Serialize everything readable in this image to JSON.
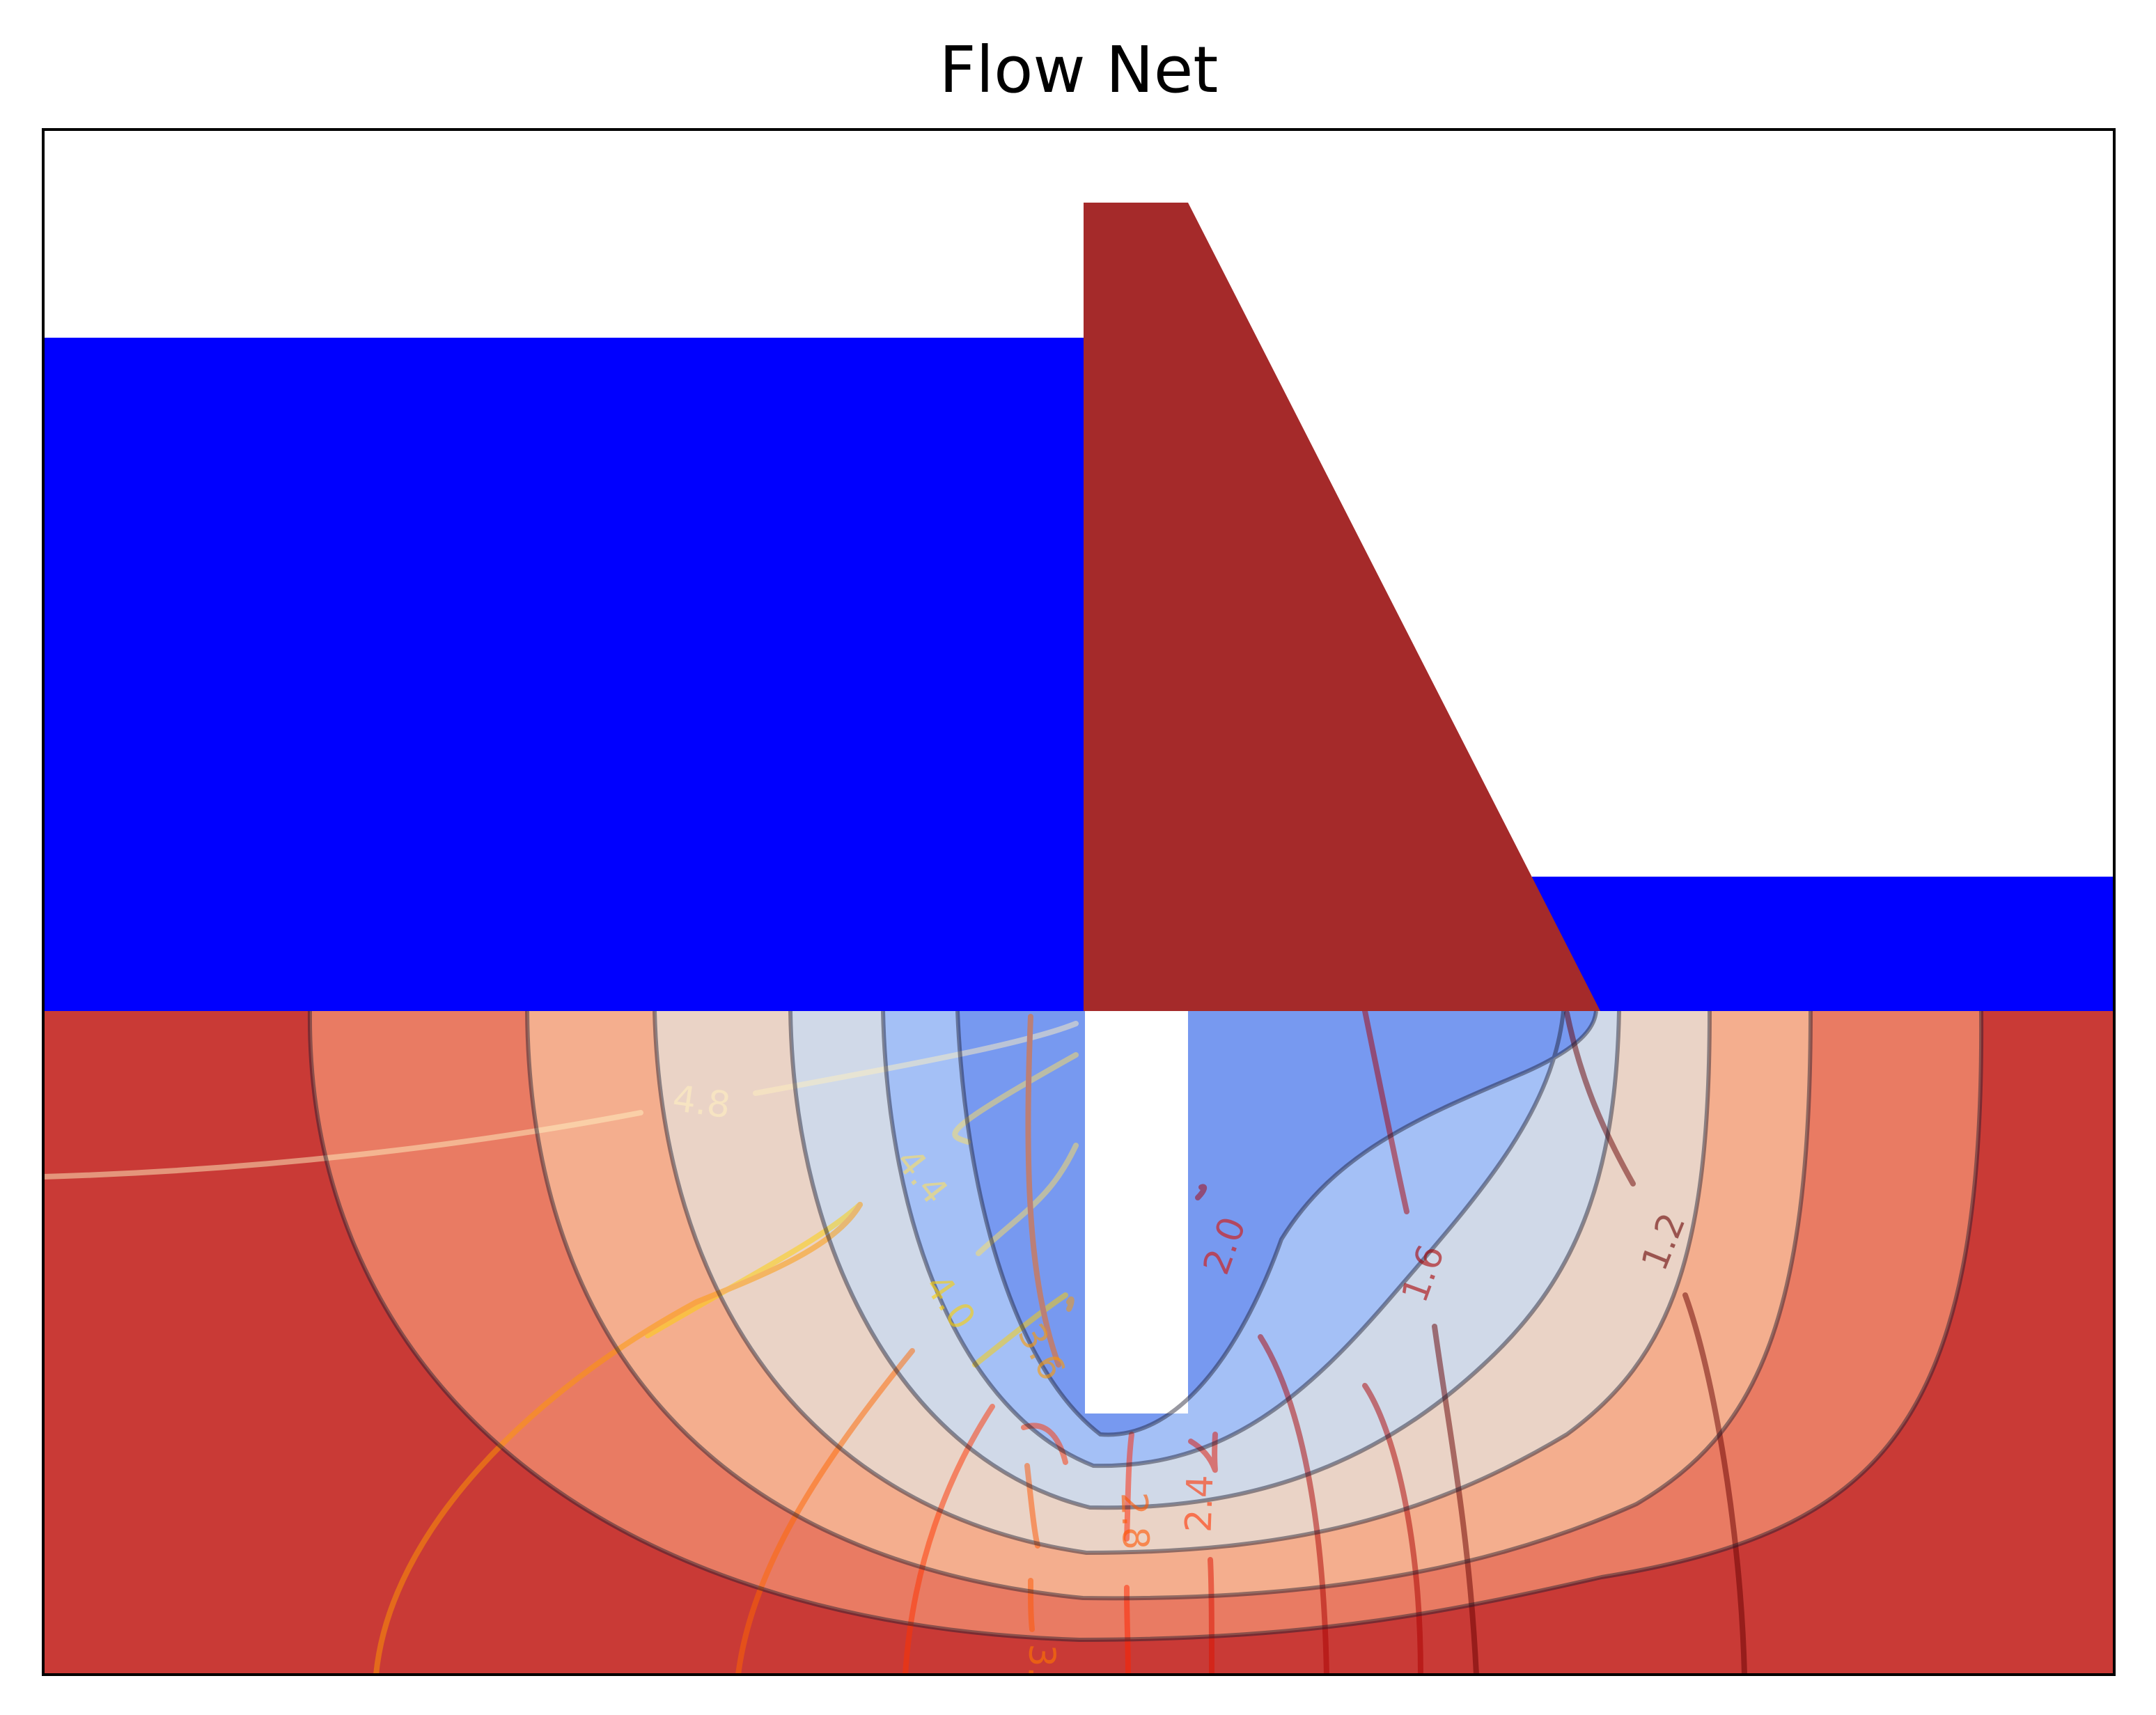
{
  "chart_data": {
    "type": "contour",
    "title": "Flow Net",
    "xlabel": "",
    "ylabel": "",
    "axes_ticks": "none",
    "grid": false,
    "regions": [
      {
        "name": "headwater",
        "color": "#0000ff"
      },
      {
        "name": "tailwater",
        "color": "#0000ff"
      },
      {
        "name": "dam",
        "color": "#a52a2a"
      },
      {
        "name": "sheet-pile",
        "color": "#ffffff"
      }
    ],
    "stream_function_fill": {
      "colormap": "coolwarm",
      "band_colors": [
        "#4b63d6",
        "#7799f0",
        "#a4c0f6",
        "#d0d9e8",
        "#ead3c6",
        "#f4ae8e",
        "#e97b63",
        "#c93a36"
      ]
    },
    "head_contours": {
      "colormap": "hot",
      "alpha": 0.5,
      "levels": [
        1.2,
        1.6,
        2.0,
        2.4,
        2.8,
        3.2,
        3.6,
        4.0,
        4.4,
        4.8
      ],
      "labels": [
        "1.2",
        "1.6",
        "2.0",
        "2.4",
        "2.8",
        "3.",
        "3.6",
        "4.0",
        "4.4",
        "4.8"
      ]
    }
  }
}
